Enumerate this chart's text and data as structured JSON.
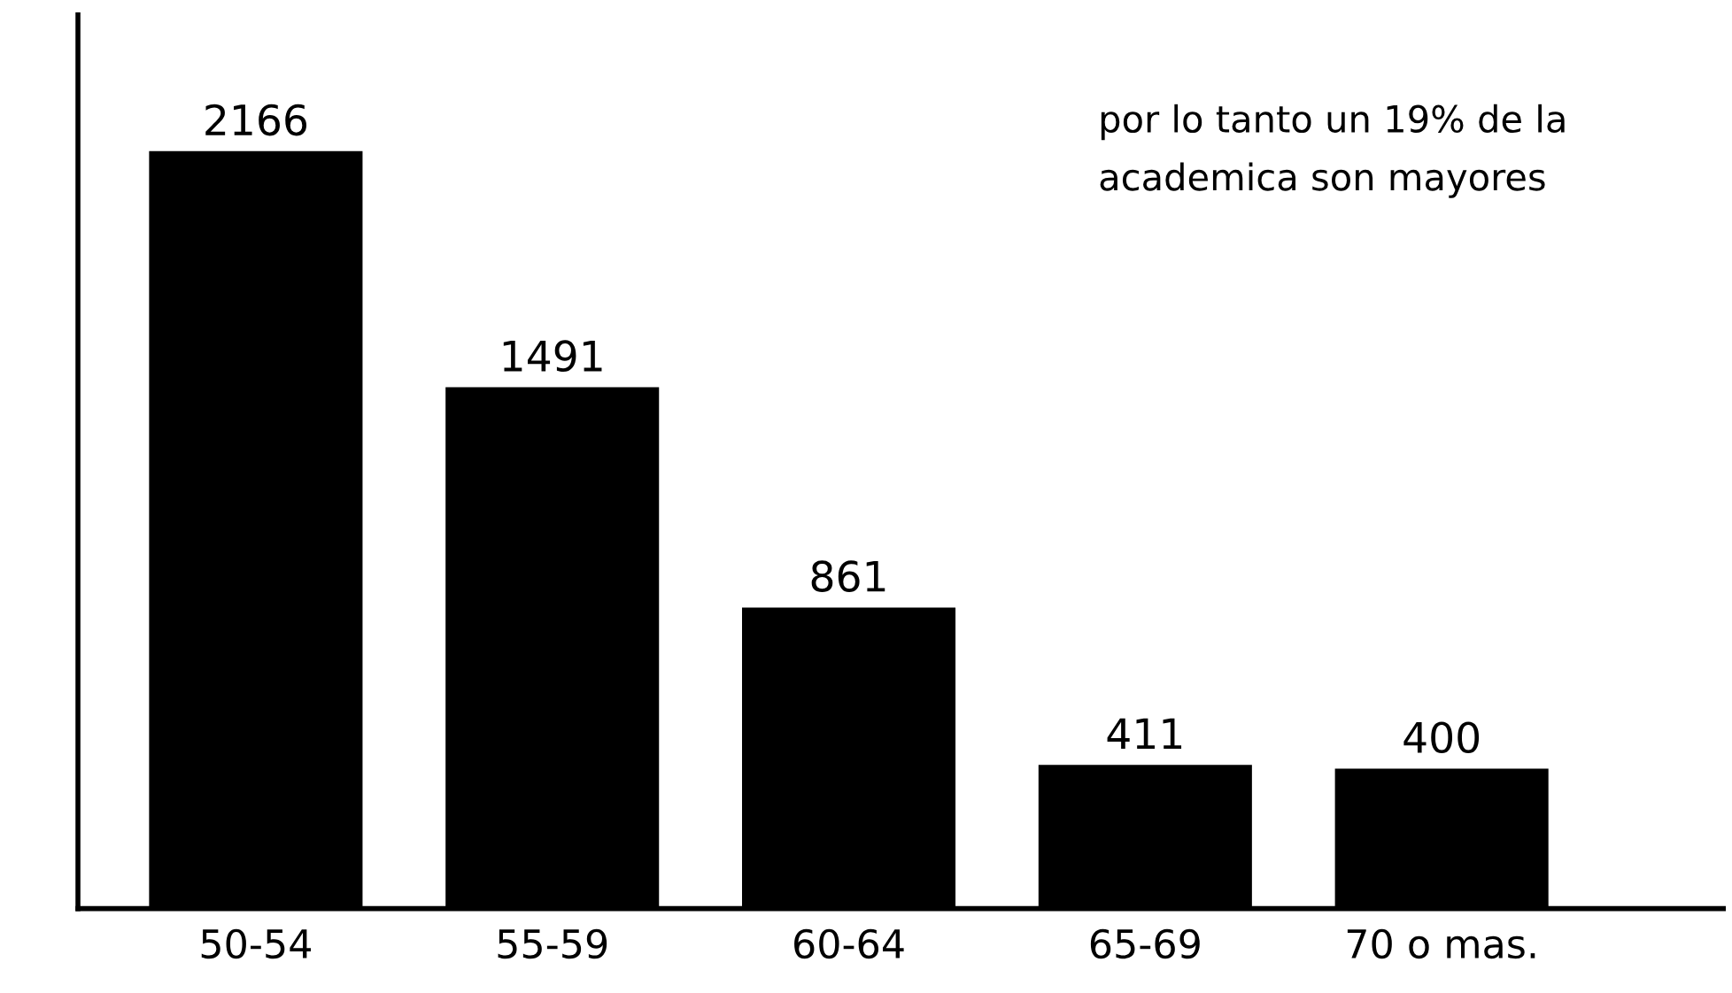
{
  "chart_data": {
    "type": "bar",
    "categories": [
      "50-54",
      "55-59",
      "60-64",
      "65-69",
      "70 o mas."
    ],
    "values": [
      2166,
      1491,
      861,
      411,
      400
    ],
    "color": "#000000",
    "data_labels": true,
    "grid": false,
    "annotations": [
      "por lo tanto un 19% de la\nacademica son mayores"
    ]
  }
}
